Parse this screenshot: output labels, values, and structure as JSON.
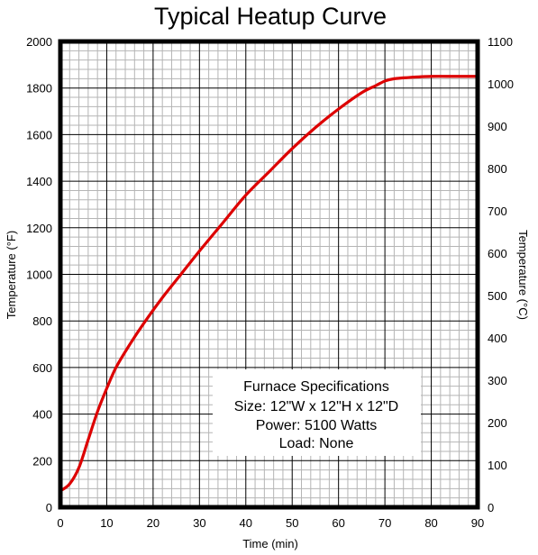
{
  "chart_data": {
    "type": "line",
    "title": "Typical Heatup Curve",
    "xlabel": "Time (min)",
    "ylabel": "Temperature (°F)",
    "ylabel_right": "Temperature (°C)",
    "xlim": [
      0,
      90
    ],
    "ylim": [
      0,
      2000
    ],
    "ylim_right": [
      0,
      1100
    ],
    "x_ticks": [
      0,
      10,
      20,
      30,
      40,
      50,
      60,
      70,
      80,
      90
    ],
    "y_ticks": [
      0,
      200,
      400,
      600,
      800,
      1000,
      1200,
      1400,
      1600,
      1800,
      2000
    ],
    "y_right_ticks": [
      0,
      100,
      200,
      300,
      400,
      500,
      600,
      700,
      800,
      900,
      1000,
      1100
    ],
    "grid": true,
    "series_color": "#dd0000",
    "series": [
      {
        "name": "",
        "x": [
          0,
          2,
          4,
          6,
          8,
          10,
          12,
          15,
          18,
          22,
          26,
          30,
          35,
          40,
          45,
          50,
          55,
          60,
          65,
          68,
          70,
          72,
          75,
          80,
          85,
          90
        ],
        "y": [
          70,
          100,
          170,
          290,
          410,
          510,
          600,
          700,
          790,
          900,
          1000,
          1100,
          1220,
          1340,
          1440,
          1540,
          1630,
          1710,
          1780,
          1810,
          1830,
          1840,
          1845,
          1850,
          1850,
          1850
        ]
      }
    ]
  },
  "specifications": {
    "heading": "Furnace Specifications",
    "size": "Size: 12\"W x 12\"H x 12\"D",
    "power": "Power: 5100 Watts",
    "load": "Load: None"
  }
}
